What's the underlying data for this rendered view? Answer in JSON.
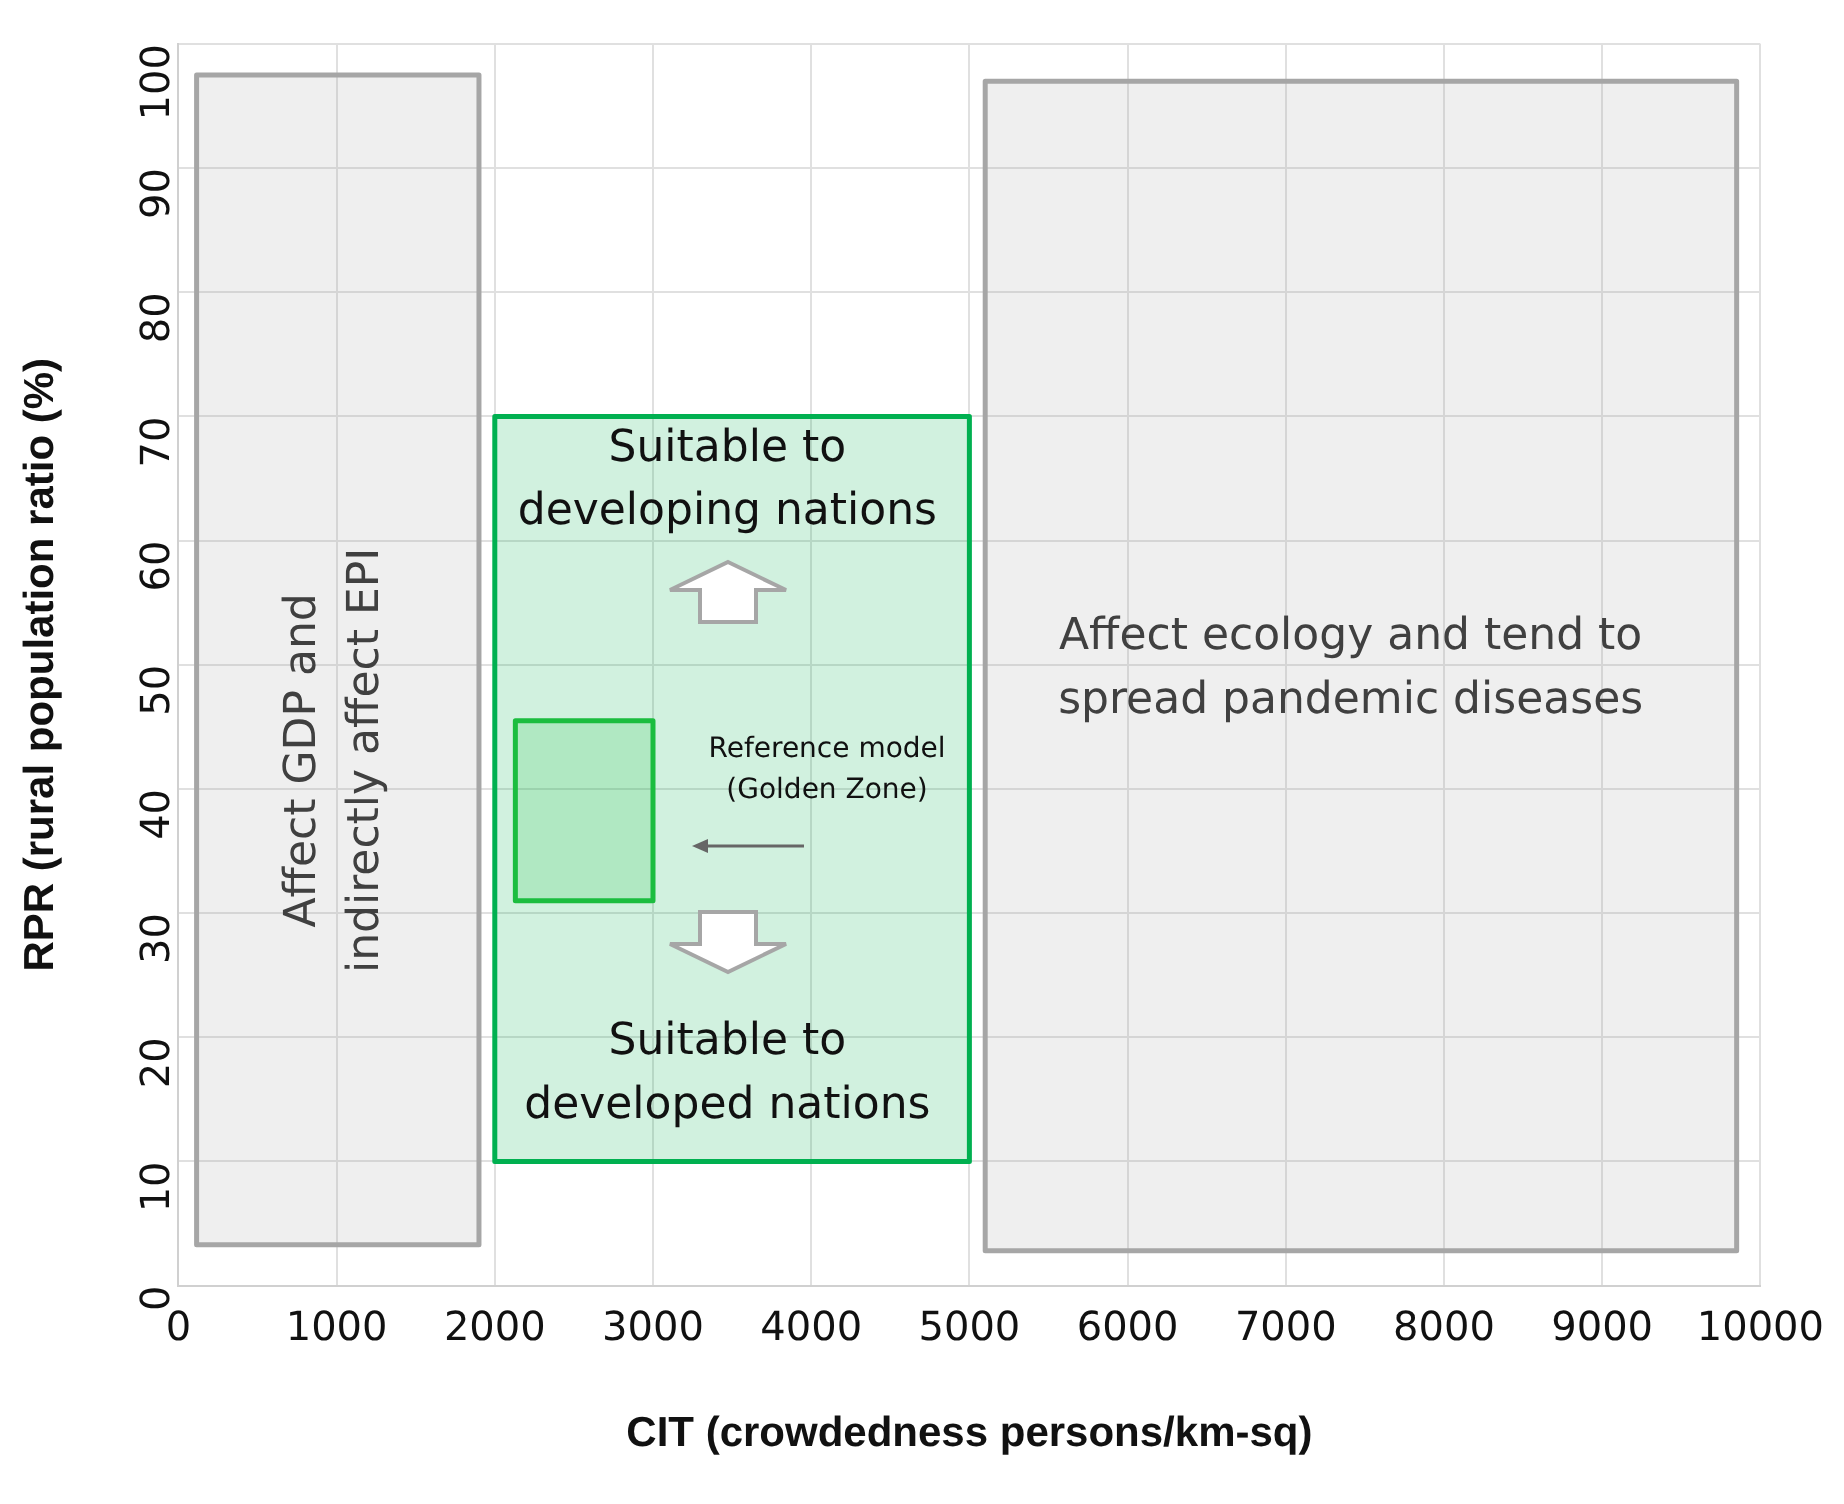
{
  "chart_data": {
    "type": "area",
    "xlabel": "CIT (crowdedness persons/km-sq)",
    "ylabel": "RPR (rural population ratio (%)",
    "xlim": [
      0,
      10000
    ],
    "xticks": [
      0,
      1000,
      2000,
      3000,
      4000,
      5000,
      6000,
      7000,
      8000,
      9000,
      10000
    ],
    "ylim": [
      0,
      100
    ],
    "yticks": [
      0,
      10,
      20,
      30,
      40,
      50,
      60,
      70,
      80,
      90,
      100
    ],
    "grid": true,
    "legend": false,
    "marker": "none",
    "line_style": "solid",
    "series": [
      {
        "color": "#a6a6a6",
        "x": [
          115,
          1900,
          1900,
          115,
          115
        ],
        "values": [
          3.3,
          3.3,
          97.5,
          97.5,
          3.3
        ]
      },
      {
        "color": "#a6a6a6",
        "x": [
          5100,
          9850,
          9850,
          5100,
          5100
        ],
        "values": [
          2.8,
          2.8,
          97,
          97,
          2.8
        ]
      },
      {
        "color": "#00b050",
        "x": [
          2000,
          5000,
          5000,
          2000,
          2000
        ],
        "values": [
          10,
          10,
          70,
          70,
          10
        ]
      },
      {
        "color": "#22c03c",
        "x": [
          2130,
          3000,
          3000,
          2130,
          2130
        ],
        "values": [
          31,
          31,
          45.5,
          45.5,
          31
        ]
      }
    ],
    "annotations": [
      "Affect GDP and\nindirectly affect EPI",
      "Suitable to\ndeveloping nations",
      "Reference model\n(Golden Zone)",
      "Suitable to\ndeveloped nations",
      "Affect ecology and tend to\nspread pandemic diseases"
    ]
  }
}
